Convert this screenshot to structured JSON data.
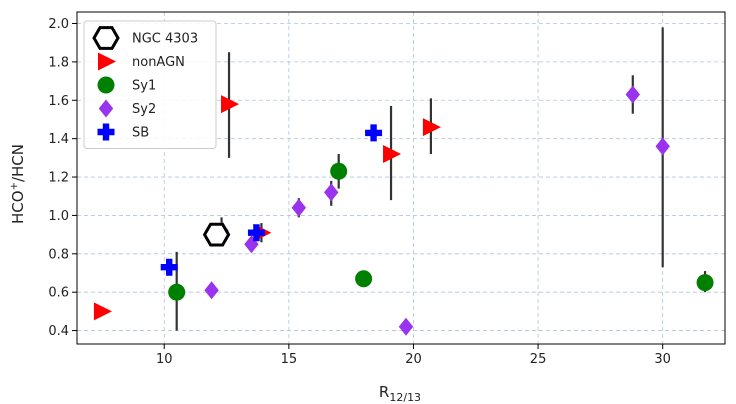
{
  "chart_data": {
    "type": "scatter",
    "xlabel_main": "R",
    "xlabel_sub": "12/13",
    "ylabel_main": "HCO",
    "ylabel_sup": "+",
    "ylabel_rest": "/HCN",
    "xlim": [
      6.5,
      32.5
    ],
    "ylim": [
      0.33,
      2.06
    ],
    "xticks": [
      10,
      15,
      20,
      25,
      30
    ],
    "yticks": [
      0.4,
      0.6,
      0.8,
      1.0,
      1.2,
      1.4,
      1.6,
      1.8,
      2.0
    ],
    "ytick_labels": [
      "0.4",
      "0.6",
      "0.8",
      "1.0",
      "1.2",
      "1.4",
      "1.6",
      "1.8",
      "2.0"
    ],
    "grid": true,
    "legend_position": "top-left",
    "series": [
      {
        "name": "NGC 4303",
        "marker": "hexagon-open",
        "color": "#000000",
        "points": [
          {
            "x": 12.1,
            "y": 0.9,
            "ylo": 0.85,
            "yhi": 0.96
          }
        ]
      },
      {
        "name": "nonAGN",
        "marker": "triangle-right",
        "color": "#ff0000",
        "points": [
          {
            "x": 7.5,
            "y": 0.5
          },
          {
            "x": 12.6,
            "y": 1.58,
            "ylo": 1.3,
            "yhi": 1.85
          },
          {
            "x": 13.9,
            "y": 0.91,
            "ylo": 0.86,
            "yhi": 0.96
          },
          {
            "x": 19.1,
            "y": 1.32,
            "ylo": 1.08,
            "yhi": 1.57
          },
          {
            "x": 20.7,
            "y": 1.46,
            "ylo": 1.32,
            "yhi": 1.61
          }
        ]
      },
      {
        "name": "Sy1",
        "marker": "circle",
        "color": "#008000",
        "points": [
          {
            "x": 10.5,
            "y": 0.6,
            "ylo": 0.4,
            "yhi": 0.81
          },
          {
            "x": 17.0,
            "y": 1.23,
            "ylo": 1.14,
            "yhi": 1.32
          },
          {
            "x": 18.0,
            "y": 0.67
          },
          {
            "x": 31.7,
            "y": 0.65,
            "ylo": 0.6,
            "yhi": 0.71
          }
        ]
      },
      {
        "name": "Sy2",
        "marker": "diamond",
        "color": "#9933ee",
        "points": [
          {
            "x": 11.9,
            "y": 0.61
          },
          {
            "x": 12.3,
            "y": 0.92,
            "ylo": 0.86,
            "yhi": 0.99
          },
          {
            "x": 13.5,
            "y": 0.85
          },
          {
            "x": 15.4,
            "y": 1.04,
            "ylo": 0.99,
            "yhi": 1.09
          },
          {
            "x": 16.7,
            "y": 1.12,
            "ylo": 1.05,
            "yhi": 1.18
          },
          {
            "x": 19.7,
            "y": 0.42
          },
          {
            "x": 28.8,
            "y": 1.63,
            "ylo": 1.53,
            "yhi": 1.73
          },
          {
            "x": 30.0,
            "y": 1.36,
            "ylo": 0.73,
            "yhi": 1.98
          }
        ]
      },
      {
        "name": "SB",
        "marker": "plus",
        "color": "#0000ff",
        "points": [
          {
            "x": 10.2,
            "y": 0.73
          },
          {
            "x": 13.7,
            "y": 0.91
          },
          {
            "x": 18.4,
            "y": 1.43
          }
        ]
      }
    ]
  }
}
